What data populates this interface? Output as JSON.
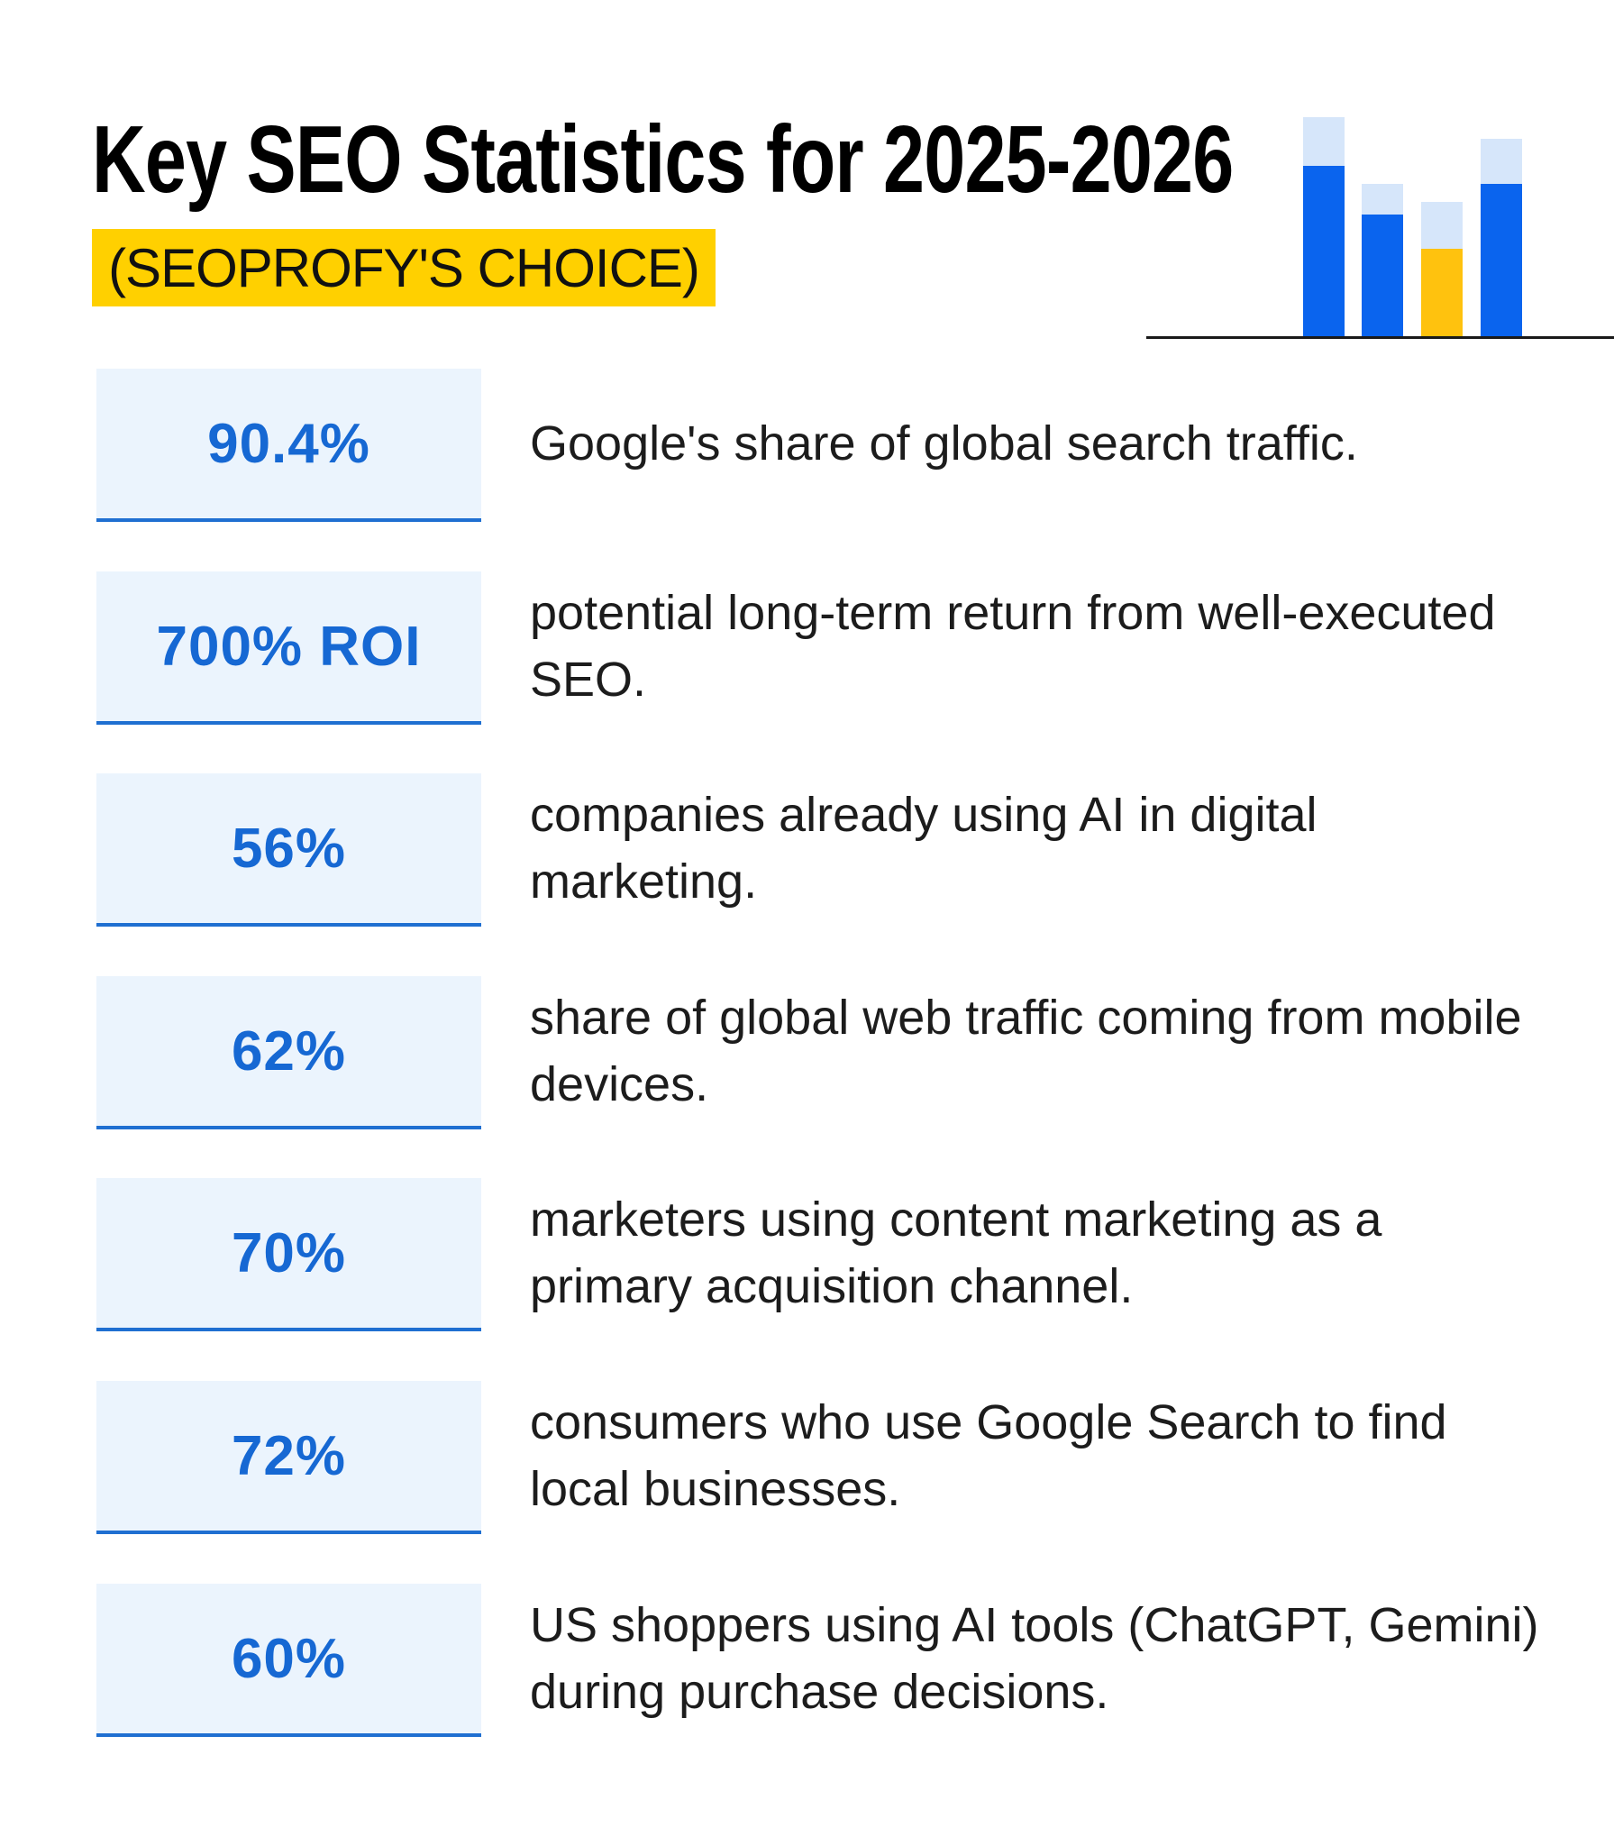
{
  "header": {
    "title": "Key SEO Statistics for 2025-2026",
    "subtitle": "(SEOPROFY'S CHOICE)"
  },
  "decoration": {
    "icon": "bar-chart-icon",
    "colors": {
      "blue": "#0A64EE",
      "light_blue": "#D6E6FA",
      "yellow": "#FFC20E",
      "baseline": "#1a1a1a"
    }
  },
  "colors": {
    "highlight": "#FFD000",
    "stat_text": "#1668D3",
    "stat_bg": "#EBF4FD",
    "stat_underline": "#1F6FD1"
  },
  "stats": [
    {
      "value": "90.4%",
      "description": "Google's share of global search traffic."
    },
    {
      "value": "700% ROI",
      "description": "potential long-term return from well-executed SEO."
    },
    {
      "value": "56%",
      "description": "companies already using AI in digital marketing."
    },
    {
      "value": "62%",
      "description": "share of global web traffic coming from mobile devices."
    },
    {
      "value": "70%",
      "description": "marketers using content marketing as a primary acquisition channel."
    },
    {
      "value": "72%",
      "description": "consumers who use Google Search to find local businesses."
    },
    {
      "value": "60%",
      "description": "US shoppers using AI tools (ChatGPT, Gemini) during purchase decisions."
    }
  ]
}
